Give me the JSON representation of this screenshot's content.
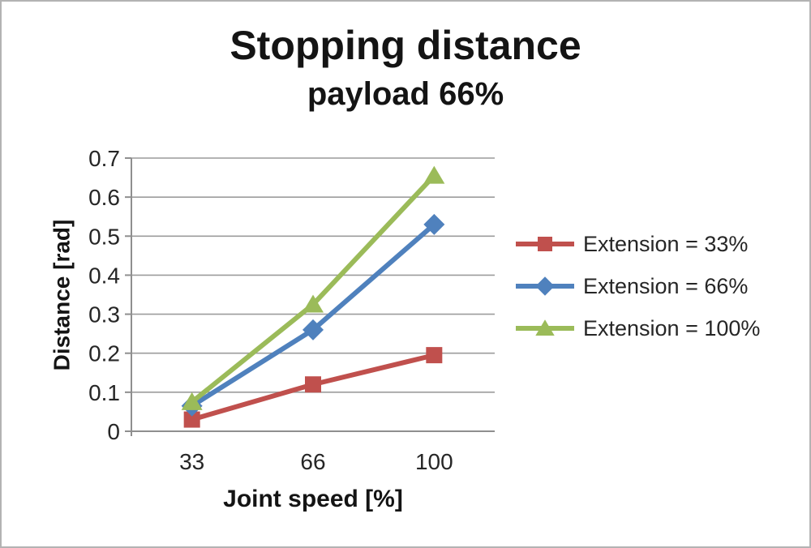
{
  "chart_data": {
    "type": "line",
    "title": "Stopping distance",
    "subtitle": "payload 66%",
    "xlabel": "Joint speed [%]",
    "ylabel": "Distance [rad]",
    "categories": [
      "33",
      "66",
      "100"
    ],
    "series": [
      {
        "name": "Extension = 33%",
        "marker": "square",
        "color": "#c0504d",
        "values": [
          0.03,
          0.12,
          0.195
        ]
      },
      {
        "name": "Extension = 66%",
        "marker": "diamond",
        "color": "#4f81bd",
        "values": [
          0.065,
          0.26,
          0.53
        ]
      },
      {
        "name": "Extension = 100%",
        "marker": "triangle",
        "color": "#9bbb59",
        "values": [
          0.075,
          0.325,
          0.655
        ]
      }
    ],
    "ylim": [
      0,
      0.7
    ],
    "ytick_step": 0.1,
    "ytick_labels": [
      "0",
      "0.1",
      "0.2",
      "0.3",
      "0.4",
      "0.5",
      "0.6",
      "0.7"
    ],
    "grid": true,
    "legend_position": "right",
    "colors": {
      "gridline": "#9c9c9c",
      "axis": "#8f8f8f",
      "tick_text": "#262626",
      "title_text": "#141414",
      "frame_border": "#b3b3b3",
      "background": "#ffffff"
    }
  }
}
